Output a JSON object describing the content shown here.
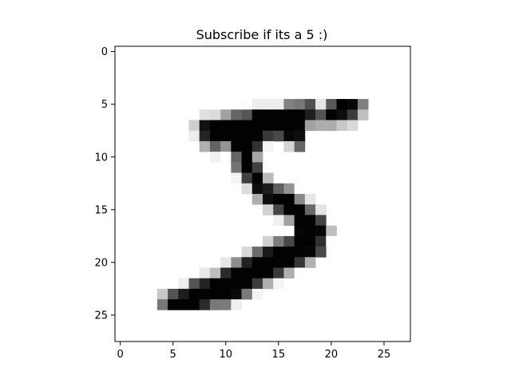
{
  "chart_data": {
    "type": "heatmap",
    "title": "Subscribe if its a 5 :)",
    "xlabel": "",
    "ylabel": "",
    "colormap": "gray_r",
    "value_range": [
      0,
      255
    ],
    "grid": false,
    "xlim": [
      -0.5,
      27.5
    ],
    "ylim": [
      27.5,
      -0.5
    ],
    "xticks": [
      0,
      5,
      10,
      15,
      20,
      25
    ],
    "yticks": [
      0,
      5,
      10,
      15,
      20,
      25
    ],
    "xtick_labels": [
      "0",
      "5",
      "10",
      "15",
      "20",
      "25"
    ],
    "ytick_labels": [
      "0",
      "5",
      "10",
      "15",
      "20",
      "25"
    ],
    "pixels": [
      [
        0,
        0,
        0,
        0,
        0,
        0,
        0,
        0,
        0,
        0,
        0,
        0,
        0,
        0,
        0,
        0,
        0,
        0,
        0,
        0,
        0,
        0,
        0,
        0,
        0,
        0,
        0,
        0
      ],
      [
        0,
        0,
        0,
        0,
        0,
        0,
        0,
        0,
        0,
        0,
        0,
        0,
        0,
        0,
        0,
        0,
        0,
        0,
        0,
        0,
        0,
        0,
        0,
        0,
        0,
        0,
        0,
        0
      ],
      [
        0,
        0,
        0,
        0,
        0,
        0,
        0,
        0,
        0,
        0,
        0,
        0,
        0,
        0,
        0,
        0,
        0,
        0,
        0,
        0,
        0,
        0,
        0,
        0,
        0,
        0,
        0,
        0
      ],
      [
        0,
        0,
        0,
        0,
        0,
        0,
        0,
        0,
        0,
        0,
        0,
        0,
        0,
        0,
        0,
        0,
        0,
        0,
        0,
        0,
        0,
        0,
        0,
        0,
        0,
        0,
        0,
        0
      ],
      [
        0,
        0,
        0,
        0,
        0,
        0,
        0,
        0,
        0,
        0,
        0,
        0,
        0,
        0,
        0,
        0,
        0,
        0,
        0,
        0,
        0,
        0,
        0,
        0,
        0,
        0,
        0,
        0
      ],
      [
        0,
        0,
        0,
        0,
        0,
        0,
        0,
        0,
        0,
        0,
        0,
        0,
        3,
        18,
        18,
        18,
        126,
        136,
        175,
        26,
        166,
        255,
        247,
        127,
        0,
        0,
        0,
        0
      ],
      [
        0,
        0,
        0,
        0,
        0,
        0,
        0,
        0,
        30,
        36,
        94,
        154,
        170,
        253,
        253,
        253,
        253,
        253,
        225,
        172,
        253,
        242,
        195,
        64,
        0,
        0,
        0,
        0
      ],
      [
        0,
        0,
        0,
        0,
        0,
        0,
        0,
        49,
        238,
        253,
        253,
        253,
        253,
        253,
        253,
        253,
        253,
        251,
        93,
        82,
        82,
        56,
        39,
        0,
        0,
        0,
        0,
        0
      ],
      [
        0,
        0,
        0,
        0,
        0,
        0,
        0,
        18,
        219,
        253,
        253,
        253,
        253,
        253,
        198,
        182,
        247,
        241,
        0,
        0,
        0,
        0,
        0,
        0,
        0,
        0,
        0,
        0
      ],
      [
        0,
        0,
        0,
        0,
        0,
        0,
        0,
        0,
        80,
        156,
        107,
        253,
        253,
        205,
        11,
        0,
        43,
        154,
        0,
        0,
        0,
        0,
        0,
        0,
        0,
        0,
        0,
        0
      ],
      [
        0,
        0,
        0,
        0,
        0,
        0,
        0,
        0,
        0,
        14,
        1,
        154,
        253,
        90,
        0,
        0,
        0,
        0,
        0,
        0,
        0,
        0,
        0,
        0,
        0,
        0,
        0,
        0
      ],
      [
        0,
        0,
        0,
        0,
        0,
        0,
        0,
        0,
        0,
        0,
        0,
        139,
        253,
        190,
        2,
        0,
        0,
        0,
        0,
        0,
        0,
        0,
        0,
        0,
        0,
        0,
        0,
        0
      ],
      [
        0,
        0,
        0,
        0,
        0,
        0,
        0,
        0,
        0,
        0,
        0,
        11,
        190,
        253,
        70,
        0,
        0,
        0,
        0,
        0,
        0,
        0,
        0,
        0,
        0,
        0,
        0,
        0
      ],
      [
        0,
        0,
        0,
        0,
        0,
        0,
        0,
        0,
        0,
        0,
        0,
        0,
        35,
        241,
        225,
        160,
        108,
        1,
        0,
        0,
        0,
        0,
        0,
        0,
        0,
        0,
        0,
        0
      ],
      [
        0,
        0,
        0,
        0,
        0,
        0,
        0,
        0,
        0,
        0,
        0,
        0,
        0,
        81,
        240,
        253,
        253,
        119,
        25,
        0,
        0,
        0,
        0,
        0,
        0,
        0,
        0,
        0
      ],
      [
        0,
        0,
        0,
        0,
        0,
        0,
        0,
        0,
        0,
        0,
        0,
        0,
        0,
        0,
        45,
        186,
        253,
        253,
        150,
        27,
        0,
        0,
        0,
        0,
        0,
        0,
        0,
        0
      ],
      [
        0,
        0,
        0,
        0,
        0,
        0,
        0,
        0,
        0,
        0,
        0,
        0,
        0,
        0,
        0,
        16,
        93,
        252,
        253,
        187,
        0,
        0,
        0,
        0,
        0,
        0,
        0,
        0
      ],
      [
        0,
        0,
        0,
        0,
        0,
        0,
        0,
        0,
        0,
        0,
        0,
        0,
        0,
        0,
        0,
        0,
        0,
        249,
        253,
        249,
        64,
        0,
        0,
        0,
        0,
        0,
        0,
        0
      ],
      [
        0,
        0,
        0,
        0,
        0,
        0,
        0,
        0,
        0,
        0,
        0,
        0,
        0,
        0,
        46,
        130,
        183,
        253,
        253,
        207,
        2,
        0,
        0,
        0,
        0,
        0,
        0,
        0
      ],
      [
        0,
        0,
        0,
        0,
        0,
        0,
        0,
        0,
        0,
        0,
        0,
        0,
        39,
        148,
        229,
        253,
        253,
        253,
        250,
        182,
        0,
        0,
        0,
        0,
        0,
        0,
        0,
        0
      ],
      [
        0,
        0,
        0,
        0,
        0,
        0,
        0,
        0,
        0,
        0,
        24,
        114,
        221,
        253,
        253,
        253,
        253,
        201,
        78,
        0,
        0,
        0,
        0,
        0,
        0,
        0,
        0,
        0
      ],
      [
        0,
        0,
        0,
        0,
        0,
        0,
        0,
        0,
        23,
        66,
        213,
        253,
        253,
        253,
        253,
        198,
        81,
        2,
        0,
        0,
        0,
        0,
        0,
        0,
        0,
        0,
        0,
        0
      ],
      [
        0,
        0,
        0,
        0,
        0,
        0,
        18,
        171,
        219,
        253,
        253,
        253,
        253,
        195,
        80,
        9,
        0,
        0,
        0,
        0,
        0,
        0,
        0,
        0,
        0,
        0,
        0,
        0
      ],
      [
        0,
        0,
        0,
        0,
        55,
        172,
        226,
        253,
        253,
        253,
        253,
        244,
        133,
        11,
        0,
        0,
        0,
        0,
        0,
        0,
        0,
        0,
        0,
        0,
        0,
        0,
        0,
        0
      ],
      [
        0,
        0,
        0,
        0,
        136,
        253,
        253,
        253,
        212,
        135,
        132,
        16,
        0,
        0,
        0,
        0,
        0,
        0,
        0,
        0,
        0,
        0,
        0,
        0,
        0,
        0,
        0,
        0
      ],
      [
        0,
        0,
        0,
        0,
        0,
        0,
        0,
        0,
        0,
        0,
        0,
        0,
        0,
        0,
        0,
        0,
        0,
        0,
        0,
        0,
        0,
        0,
        0,
        0,
        0,
        0,
        0,
        0
      ],
      [
        0,
        0,
        0,
        0,
        0,
        0,
        0,
        0,
        0,
        0,
        0,
        0,
        0,
        0,
        0,
        0,
        0,
        0,
        0,
        0,
        0,
        0,
        0,
        0,
        0,
        0,
        0,
        0
      ],
      [
        0,
        0,
        0,
        0,
        0,
        0,
        0,
        0,
        0,
        0,
        0,
        0,
        0,
        0,
        0,
        0,
        0,
        0,
        0,
        0,
        0,
        0,
        0,
        0,
        0,
        0,
        0,
        0
      ]
    ]
  }
}
